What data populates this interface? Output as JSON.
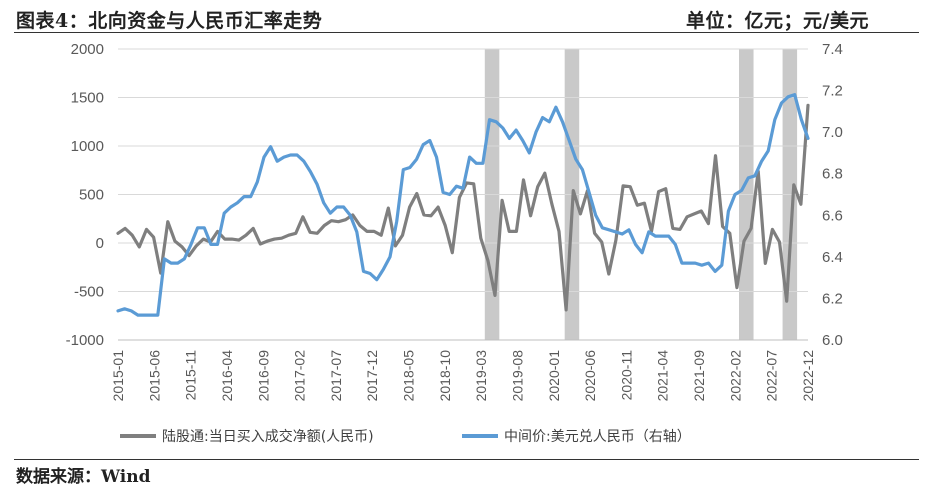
{
  "header": {
    "title": "图表4：北向资金与人民币汇率走势",
    "unit": "单位：亿元；元/美元"
  },
  "footer": {
    "source": "数据来源：Wind"
  },
  "chart_data": {
    "type": "line",
    "title": "图表4：北向资金与人民币汇率走势",
    "left_axis": {
      "ylim": [
        -1000,
        2000
      ],
      "ticks": [
        "-1000",
        "-500",
        "0",
        "500",
        "1000",
        "1500",
        "2000"
      ]
    },
    "right_axis": {
      "ylim": [
        6.0,
        7.4
      ],
      "ticks": [
        "6.0",
        "6.2",
        "6.4",
        "6.6",
        "6.8",
        "7.0",
        "7.2",
        "7.4"
      ]
    },
    "x_tick_labels": [
      "2015-01",
      "2015-06",
      "2015-11",
      "2016-04",
      "2016-09",
      "2017-02",
      "2017-07",
      "2017-12",
      "2018-05",
      "2018-10",
      "2019-03",
      "2019-08",
      "2020-01",
      "2020-06",
      "2020-11",
      "2021-04",
      "2021-09",
      "2022-02",
      "2022-07",
      "2022-12"
    ],
    "x_range": [
      "2015-01",
      "2022-12"
    ],
    "shaded_periods": [
      [
        "2019-04",
        "2019-05"
      ],
      [
        "2020-03",
        "2020-04"
      ],
      [
        "2022-03",
        "2022-04"
      ],
      [
        "2022-09",
        "2022-10"
      ]
    ],
    "grid": "horizontal",
    "legend_position": "bottom",
    "series": [
      {
        "name": "陆股通:当日买入成交净额(人民币)",
        "axis": "left",
        "color": "#7f7f7f",
        "values": [
          100,
          150,
          80,
          -40,
          140,
          60,
          -310,
          220,
          20,
          -40,
          -130,
          -30,
          40,
          10,
          120,
          40,
          40,
          30,
          80,
          150,
          -10,
          20,
          40,
          50,
          80,
          100,
          270,
          110,
          100,
          180,
          230,
          220,
          240,
          290,
          180,
          120,
          120,
          80,
          360,
          -30,
          80,
          370,
          510,
          290,
          280,
          370,
          180,
          -100,
          470,
          620,
          610,
          50,
          -180,
          -540,
          440,
          120,
          120,
          650,
          280,
          580,
          720,
          400,
          120,
          -690,
          540,
          300,
          540,
          100,
          10,
          -320,
          30,
          590,
          580,
          390,
          410,
          120,
          530,
          560,
          150,
          140,
          270,
          300,
          330,
          200,
          900,
          170,
          100,
          -460,
          20,
          150,
          740,
          -210,
          140,
          10,
          -600,
          600,
          400,
          1420
        ]
      },
      {
        "name": "中间价:美元兑人民币（右轴）",
        "axis": "right",
        "color": "#5b9bd5",
        "values": [
          6.14,
          6.15,
          6.14,
          6.12,
          6.12,
          6.12,
          6.12,
          6.39,
          6.37,
          6.37,
          6.39,
          6.46,
          6.54,
          6.54,
          6.46,
          6.46,
          6.61,
          6.64,
          6.66,
          6.69,
          6.69,
          6.76,
          6.88,
          6.93,
          6.86,
          6.88,
          6.89,
          6.89,
          6.86,
          6.81,
          6.75,
          6.66,
          6.61,
          6.64,
          6.64,
          6.6,
          6.52,
          6.33,
          6.32,
          6.29,
          6.34,
          6.4,
          6.57,
          6.82,
          6.83,
          6.87,
          6.94,
          6.96,
          6.88,
          6.71,
          6.7,
          6.74,
          6.73,
          6.88,
          6.85,
          6.85,
          7.06,
          7.05,
          7.02,
          6.97,
          7.01,
          6.96,
          6.9,
          7.0,
          7.07,
          7.05,
          7.12,
          7.05,
          6.96,
          6.87,
          6.82,
          6.71,
          6.6,
          6.54,
          6.53,
          6.52,
          6.51,
          6.53,
          6.46,
          6.42,
          6.52,
          6.5,
          6.5,
          6.5,
          6.46,
          6.37,
          6.37,
          6.37,
          6.36,
          6.37,
          6.33,
          6.36,
          6.62,
          6.7,
          6.72,
          6.78,
          6.79,
          6.86,
          6.91,
          7.06,
          7.14,
          7.17,
          7.18,
          7.06,
          6.97
        ]
      }
    ]
  }
}
